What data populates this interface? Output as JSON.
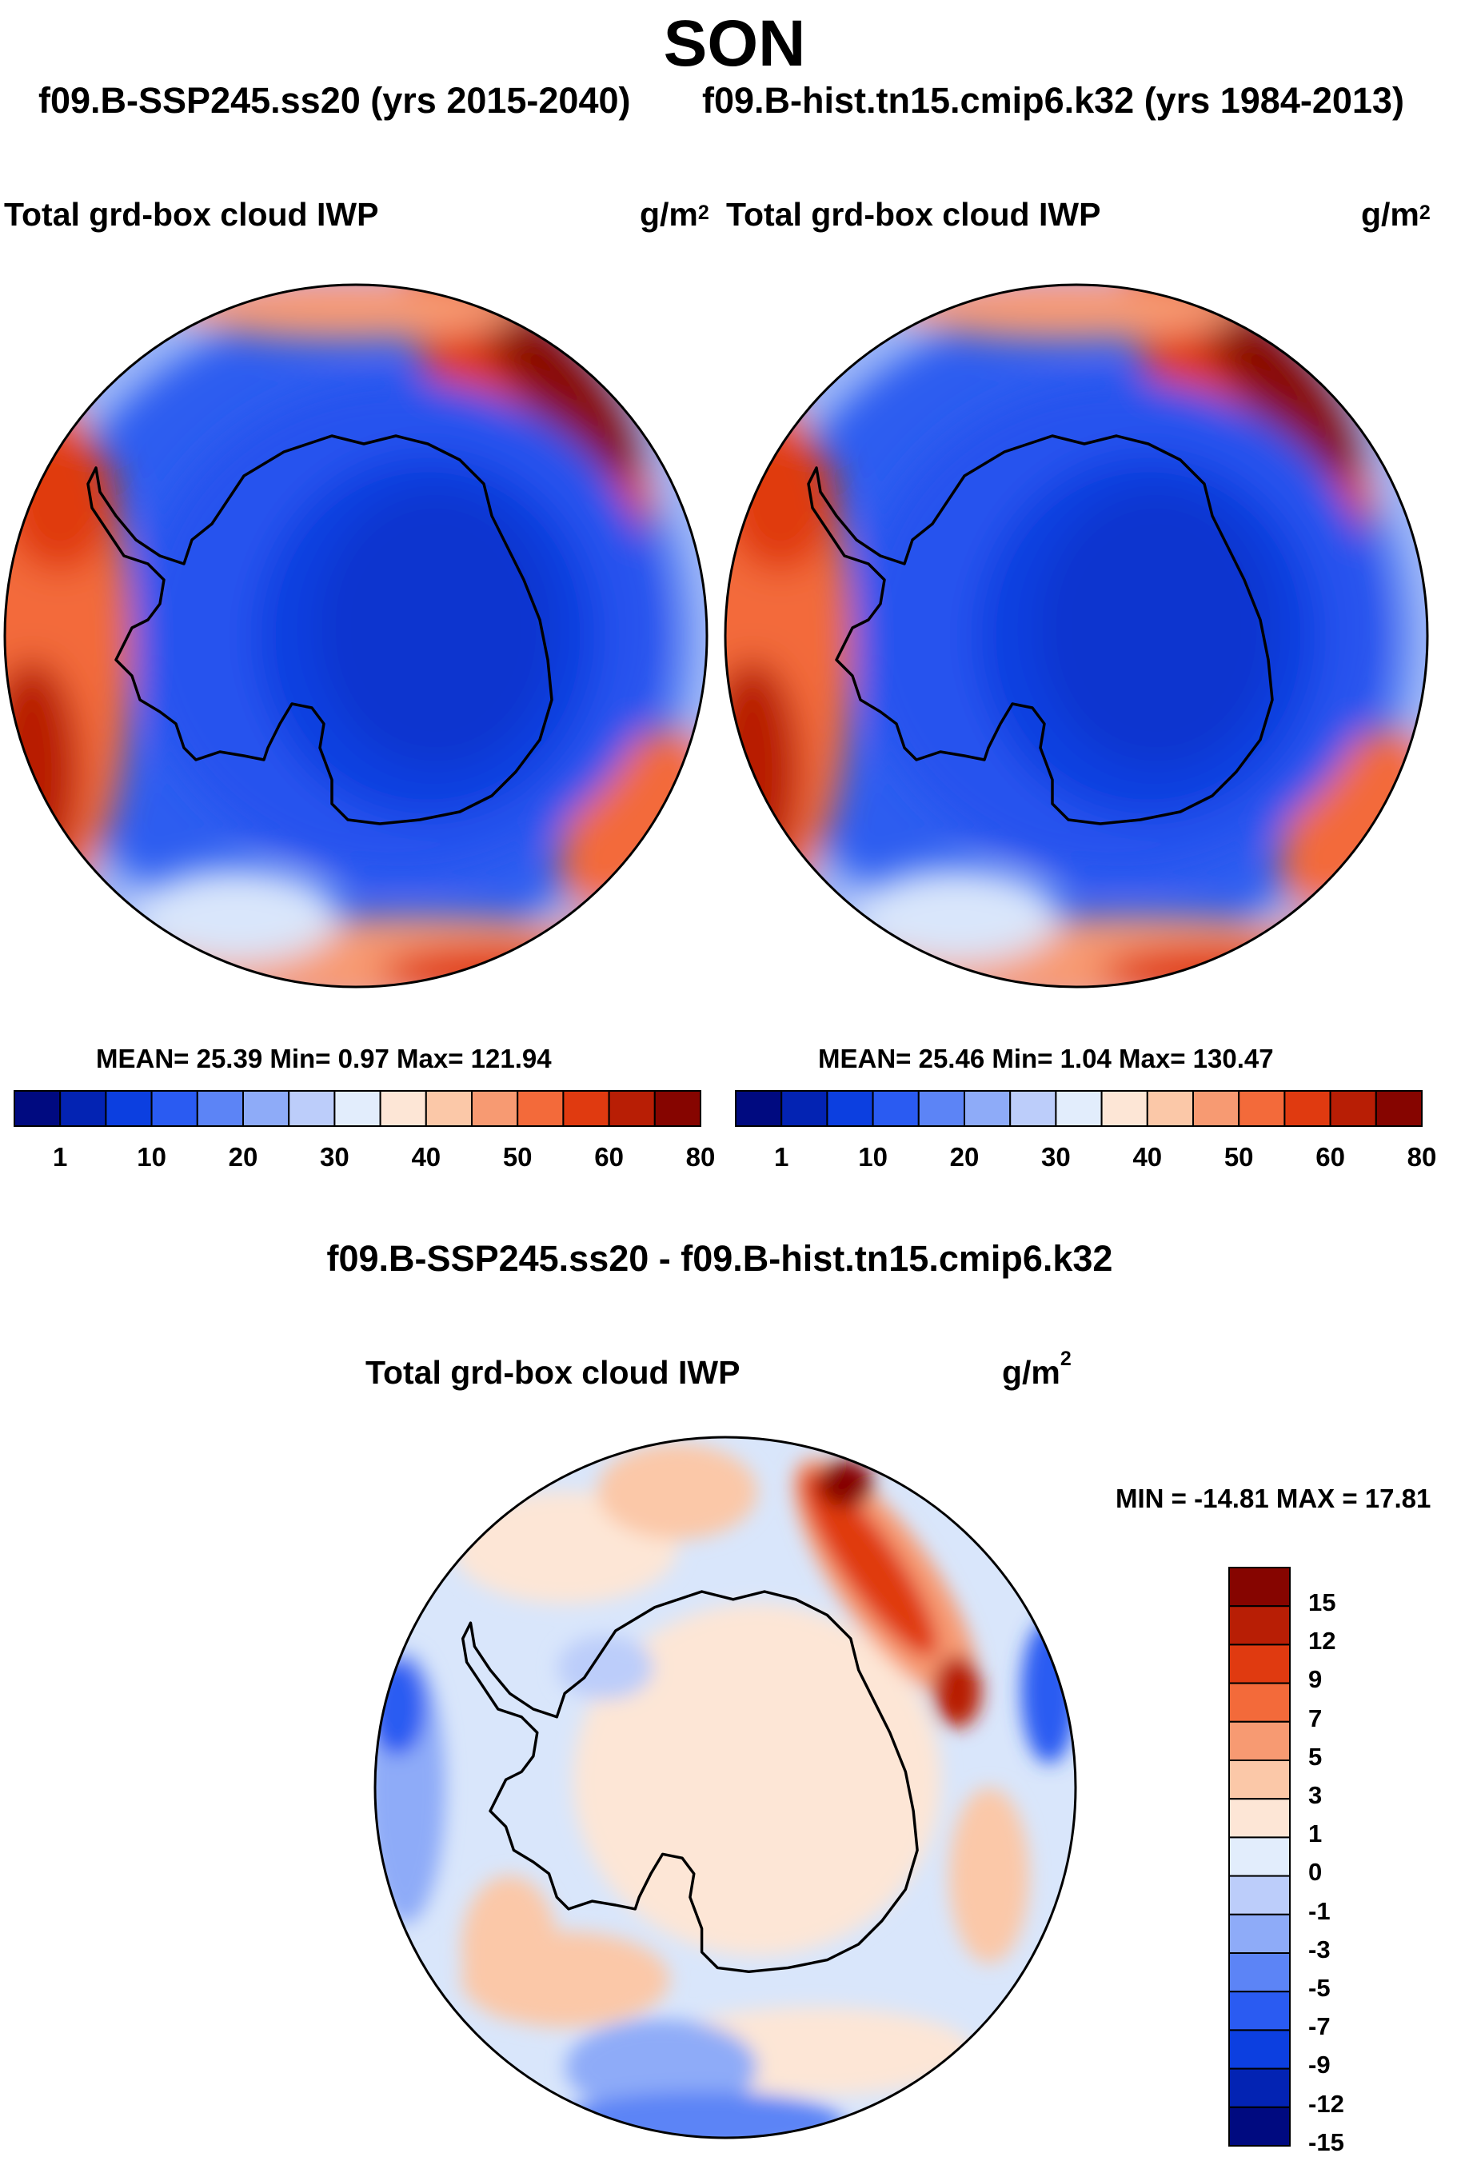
{
  "header": {
    "title": "SON",
    "case_left": "f09.B-SSP245.ss20 (yrs 2015-2040)",
    "case_right": "f09.B-hist.tn15.cmip6.k32 (yrs 1984-2013)"
  },
  "panels": [
    {
      "variable": "Total grd-box cloud IWP",
      "unit": "g/m",
      "unit_exp": "2",
      "stats": "MEAN=  25.39  Min=   0.97  Max= 121.94"
    },
    {
      "variable": "Total grd-box cloud IWP",
      "unit": "g/m",
      "unit_exp": "2",
      "stats": "MEAN=  25.46  Min=   1.04  Max= 130.47"
    }
  ],
  "abs_colorbar": {
    "labels": [
      "1",
      "10",
      "20",
      "30",
      "40",
      "50",
      "60",
      "80"
    ],
    "colors": [
      "#000a80",
      "#0323b3",
      "#0c3fe0",
      "#2a5bf2",
      "#5c84f6",
      "#8eabf8",
      "#bccdfa",
      "#e2edfc",
      "#fde6d6",
      "#fbc8a8",
      "#f79a72",
      "#f36a3a",
      "#e03a10",
      "#b81e05",
      "#860500"
    ]
  },
  "difference": {
    "title": "f09.B-SSP245.ss20 - f09.B-hist.tn15.cmip6.k32",
    "variable": "Total grd-box cloud IWP",
    "unit": "g/m",
    "unit_exp": "2",
    "minmax": "MIN = -14.81 MAX =  17.81"
  },
  "diff_colorbar": {
    "labels": [
      "15",
      "12",
      "9",
      "7",
      "5",
      "3",
      "1",
      "0",
      "-1",
      "-3",
      "-5",
      "-7",
      "-9",
      "-12",
      "-15"
    ],
    "colors": [
      "#860500",
      "#b81e05",
      "#e03a10",
      "#f36a3a",
      "#f79a72",
      "#fbc8a8",
      "#fde6d6",
      "#e2edfc",
      "#bccdfa",
      "#8eabf8",
      "#5c84f6",
      "#2a5bf2",
      "#0c3fe0",
      "#0323b3",
      "#000a80"
    ]
  },
  "map_colors": {
    "deep_blue": "#0d3fd9",
    "mid_blue": "#2d5df0",
    "light_blue": "#6d92f5",
    "pale_blue": "#d9e6fb",
    "cream": "#fde6d6",
    "orange": "#f36a3a",
    "dark_red": "#8a0a03"
  }
}
